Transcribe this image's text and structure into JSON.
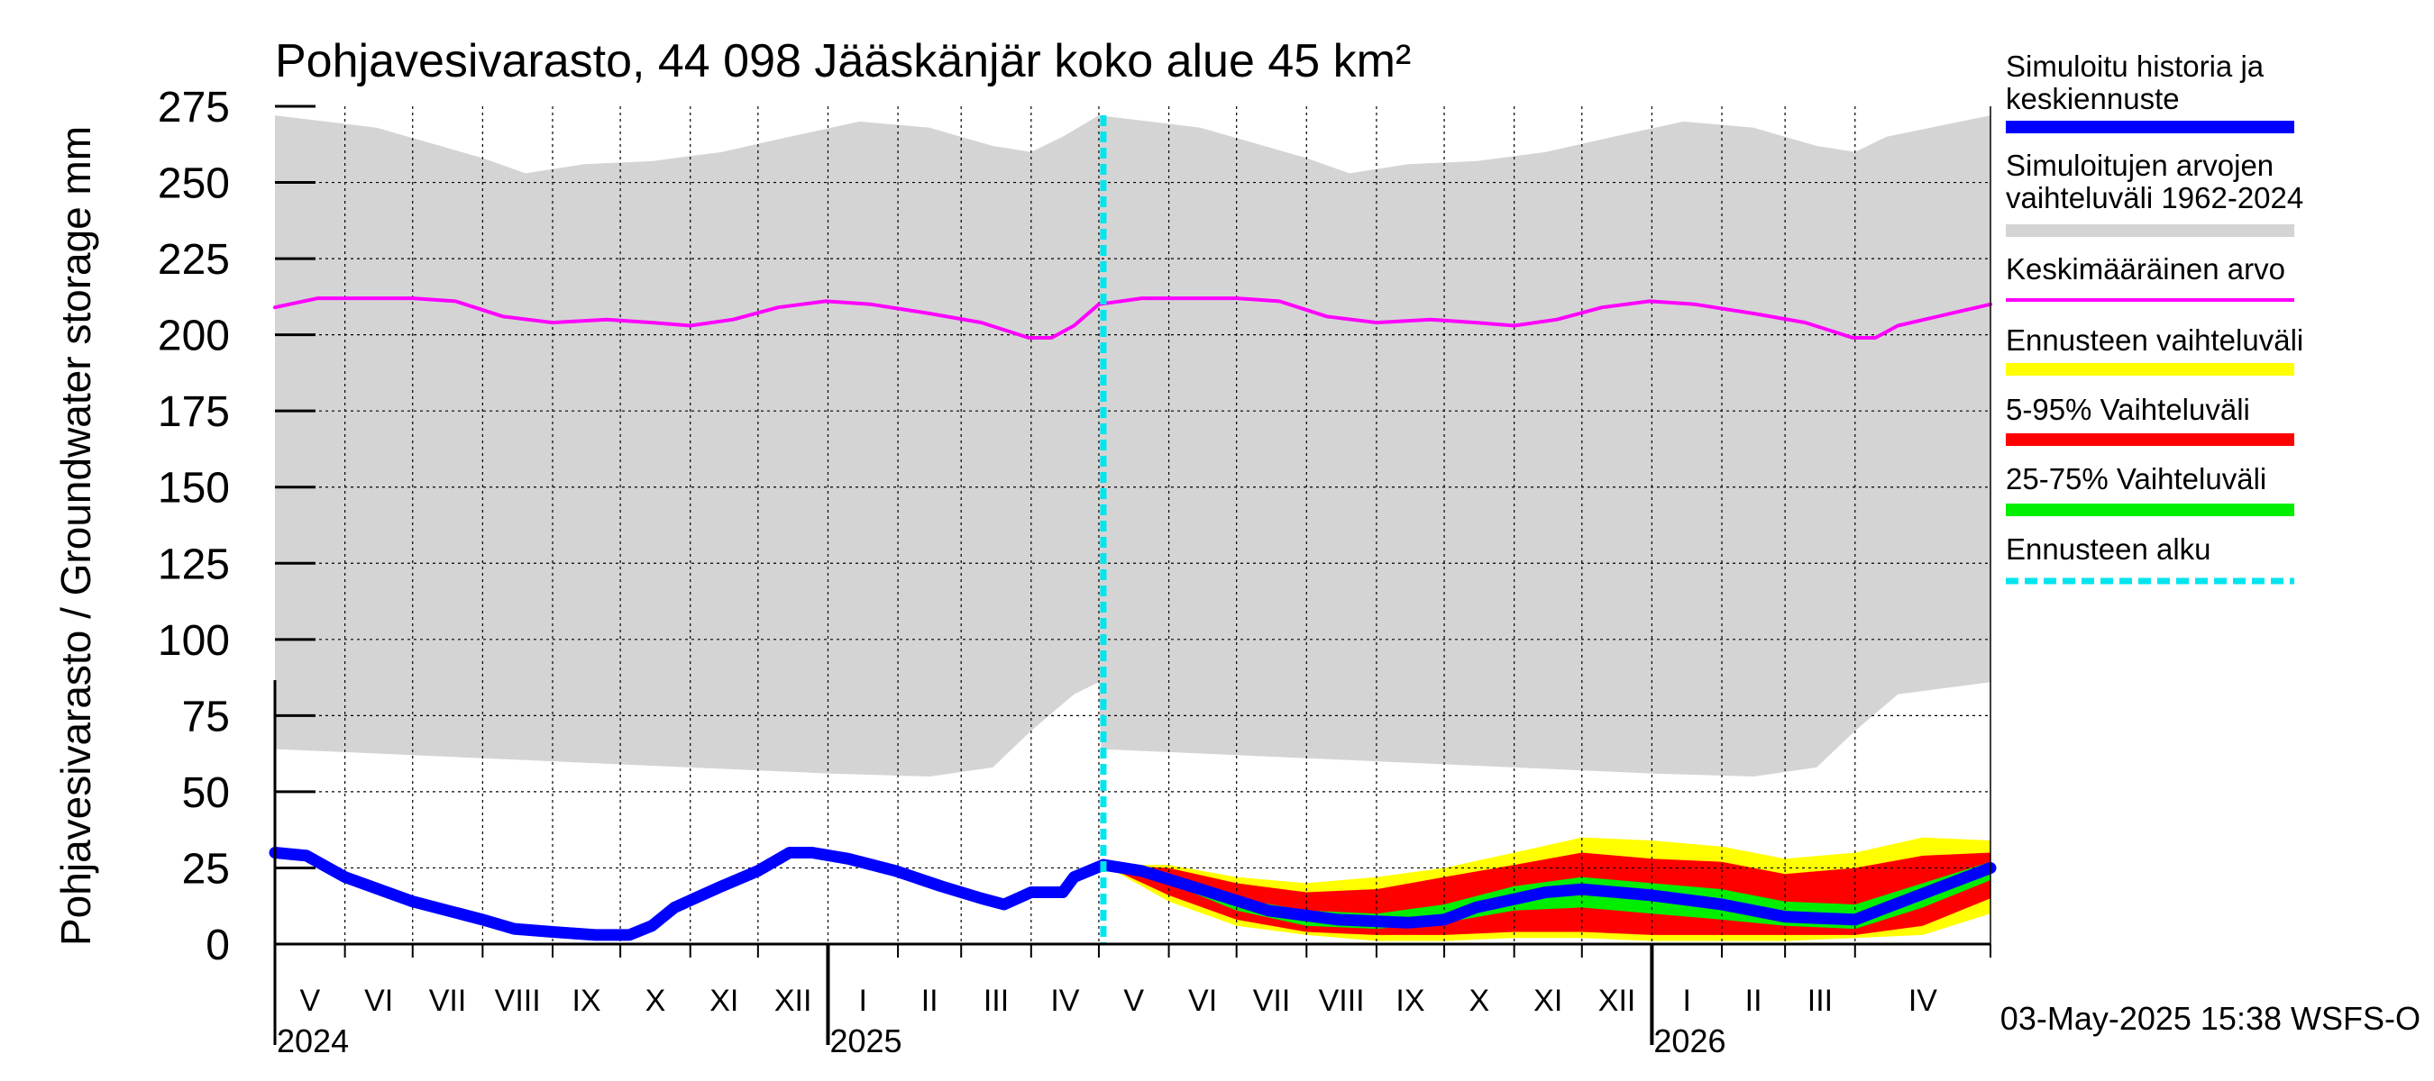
{
  "chart_data": {
    "type": "area",
    "title": "Pohjavesivarasto, 44 098 Jääskänjär koko alue 45 km²",
    "ylabel": "Pohjavesivarasto / Groundwater storage   mm",
    "ylim": [
      0,
      275
    ],
    "yticks": [
      "0",
      "25",
      "50",
      "75",
      "100",
      "125",
      "150",
      "175",
      "200",
      "225",
      "250",
      "275"
    ],
    "months": [
      "V",
      "VI",
      "VII",
      "VIII",
      "IX",
      "X",
      "XI",
      "XII",
      "I",
      "II",
      "III",
      "IV",
      "V",
      "VI",
      "VII",
      "VIII",
      "IX",
      "X",
      "XI",
      "XII",
      "I",
      "II",
      "III",
      "IV"
    ],
    "years": [
      "2024",
      "2025",
      "2026"
    ],
    "x_start": "2024-05-01",
    "x_end": "2026-05-31",
    "forecast_start": "2025-05-03",
    "footer": "03-May-2025 15:38 WSFS-O",
    "legend": [
      {
        "label": "Simuloitu historia ja keskiennuste",
        "color": "#0000ff"
      },
      {
        "label": "Simuloitujen arvojen vaihteluväli 1962-2024",
        "color": "#d3d3d3"
      },
      {
        "label": "Keskimääräinen arvo",
        "color": "#ff00ff"
      },
      {
        "label": "Ennusteen vaihteluväli",
        "color": "#ffff00"
      },
      {
        "label": "5-95% Vaihteluväli",
        "color": "#ff0000"
      },
      {
        "label": "25-75% Vaihteluväli",
        "color": "#00ee00"
      },
      {
        "label": "Ennusteen alku",
        "color": "#00e5ee"
      }
    ],
    "range_upper": [
      [
        "2024-05-01",
        272
      ],
      [
        "2024-06-15",
        268
      ],
      [
        "2024-08-01",
        258
      ],
      [
        "2024-08-20",
        253
      ],
      [
        "2024-09-15",
        256
      ],
      [
        "2024-10-15",
        257
      ],
      [
        "2024-11-15",
        260
      ],
      [
        "2024-12-15",
        265
      ],
      [
        "2025-01-15",
        270
      ],
      [
        "2025-02-15",
        268
      ],
      [
        "2025-03-15",
        262
      ],
      [
        "2025-04-01",
        260
      ],
      [
        "2025-04-15",
        265
      ],
      [
        "2025-05-01",
        272
      ],
      [
        "2025-06-15",
        268
      ],
      [
        "2025-08-01",
        258
      ],
      [
        "2025-08-20",
        253
      ],
      [
        "2025-09-15",
        256
      ],
      [
        "2025-10-15",
        257
      ],
      [
        "2025-11-15",
        260
      ],
      [
        "2025-12-15",
        265
      ],
      [
        "2026-01-15",
        270
      ],
      [
        "2026-02-15",
        268
      ],
      [
        "2026-03-15",
        262
      ],
      [
        "2026-04-01",
        260
      ],
      [
        "2026-04-15",
        265
      ],
      [
        "2026-05-31",
        272
      ]
    ],
    "range_lower": [
      [
        "2024-05-01",
        64
      ],
      [
        "2024-06-01",
        63
      ],
      [
        "2024-07-01",
        62
      ],
      [
        "2024-09-01",
        60
      ],
      [
        "2024-11-01",
        58
      ],
      [
        "2025-01-01",
        56
      ],
      [
        "2025-02-15",
        55
      ],
      [
        "2025-03-15",
        58
      ],
      [
        "2025-04-01",
        70
      ],
      [
        "2025-04-20",
        82
      ],
      [
        "2025-05-01",
        86
      ],
      [
        "2025-05-02",
        64
      ],
      [
        "2025-06-01",
        63
      ],
      [
        "2025-07-01",
        62
      ],
      [
        "2025-09-01",
        60
      ],
      [
        "2025-11-01",
        58
      ],
      [
        "2026-01-01",
        56
      ],
      [
        "2026-02-15",
        55
      ],
      [
        "2026-03-15",
        58
      ],
      [
        "2026-04-01",
        70
      ],
      [
        "2026-04-20",
        82
      ],
      [
        "2026-05-31",
        86
      ]
    ],
    "mean": [
      [
        "2024-05-01",
        209
      ],
      [
        "2024-05-20",
        212
      ],
      [
        "2024-07-01",
        212
      ],
      [
        "2024-07-20",
        211
      ],
      [
        "2024-08-10",
        206
      ],
      [
        "2024-09-01",
        204
      ],
      [
        "2024-09-25",
        205
      ],
      [
        "2024-10-15",
        204
      ],
      [
        "2024-11-01",
        203
      ],
      [
        "2024-11-20",
        205
      ],
      [
        "2024-12-10",
        209
      ],
      [
        "2024-12-31",
        211
      ],
      [
        "2025-01-20",
        210
      ],
      [
        "2025-02-15",
        207
      ],
      [
        "2025-03-10",
        204
      ],
      [
        "2025-03-31",
        199
      ],
      [
        "2025-04-10",
        199
      ],
      [
        "2025-04-20",
        203
      ],
      [
        "2025-05-01",
        210
      ],
      [
        "2025-05-20",
        212
      ],
      [
        "2025-07-01",
        212
      ],
      [
        "2025-07-20",
        211
      ],
      [
        "2025-08-10",
        206
      ],
      [
        "2025-09-01",
        204
      ],
      [
        "2025-09-25",
        205
      ],
      [
        "2025-10-15",
        204
      ],
      [
        "2025-11-01",
        203
      ],
      [
        "2025-11-20",
        205
      ],
      [
        "2025-12-10",
        209
      ],
      [
        "2025-12-31",
        211
      ],
      [
        "2026-01-20",
        210
      ],
      [
        "2026-02-15",
        207
      ],
      [
        "2026-03-10",
        204
      ],
      [
        "2026-03-31",
        199
      ],
      [
        "2026-04-10",
        199
      ],
      [
        "2026-04-20",
        203
      ],
      [
        "2026-05-31",
        210
      ]
    ],
    "history": [
      [
        "2024-05-01",
        30
      ],
      [
        "2024-05-15",
        29
      ],
      [
        "2024-06-01",
        22
      ],
      [
        "2024-07-01",
        14
      ],
      [
        "2024-08-01",
        8
      ],
      [
        "2024-08-15",
        5
      ],
      [
        "2024-09-01",
        4
      ],
      [
        "2024-09-20",
        3
      ],
      [
        "2024-10-05",
        3
      ],
      [
        "2024-10-15",
        6
      ],
      [
        "2024-10-25",
        12
      ],
      [
        "2024-11-15",
        19
      ],
      [
        "2024-12-01",
        24
      ],
      [
        "2024-12-15",
        30
      ],
      [
        "2024-12-25",
        30
      ],
      [
        "2025-01-10",
        28
      ],
      [
        "2025-01-31",
        24
      ],
      [
        "2025-02-20",
        19
      ],
      [
        "2025-03-10",
        15
      ],
      [
        "2025-03-20",
        13
      ],
      [
        "2025-04-01",
        17
      ],
      [
        "2025-04-15",
        17
      ],
      [
        "2025-04-20",
        22
      ],
      [
        "2025-05-03",
        26
      ]
    ],
    "forecast_median": [
      [
        "2025-05-03",
        26
      ],
      [
        "2025-05-20",
        24
      ],
      [
        "2025-06-15",
        18
      ],
      [
        "2025-07-15",
        11
      ],
      [
        "2025-08-15",
        8
      ],
      [
        "2025-09-15",
        7
      ],
      [
        "2025-10-01",
        8
      ],
      [
        "2025-10-15",
        12
      ],
      [
        "2025-11-15",
        17
      ],
      [
        "2025-12-01",
        18
      ],
      [
        "2026-01-01",
        16
      ],
      [
        "2026-02-01",
        13
      ],
      [
        "2026-03-01",
        9
      ],
      [
        "2026-04-01",
        8
      ],
      [
        "2026-04-15",
        12
      ],
      [
        "2026-05-31",
        25
      ]
    ],
    "yellow_upper": [
      [
        "2025-05-03",
        26
      ],
      [
        "2025-06-01",
        26
      ],
      [
        "2025-07-01",
        22
      ],
      [
        "2025-08-01",
        20
      ],
      [
        "2025-09-01",
        22
      ],
      [
        "2025-10-01",
        25
      ],
      [
        "2025-11-01",
        30
      ],
      [
        "2025-12-01",
        35
      ],
      [
        "2026-01-01",
        34
      ],
      [
        "2026-02-01",
        32
      ],
      [
        "2026-03-01",
        28
      ],
      [
        "2026-04-01",
        30
      ],
      [
        "2026-05-01",
        35
      ],
      [
        "2026-05-31",
        34
      ]
    ],
    "yellow_lower": [
      [
        "2025-05-03",
        26
      ],
      [
        "2025-06-01",
        14
      ],
      [
        "2025-07-01",
        6
      ],
      [
        "2025-08-01",
        3
      ],
      [
        "2025-09-01",
        1
      ],
      [
        "2025-10-01",
        1
      ],
      [
        "2025-11-01",
        2
      ],
      [
        "2025-12-01",
        2
      ],
      [
        "2026-01-01",
        1
      ],
      [
        "2026-02-01",
        1
      ],
      [
        "2026-03-01",
        1
      ],
      [
        "2026-04-01",
        2
      ],
      [
        "2026-05-01",
        3
      ],
      [
        "2026-05-31",
        10
      ]
    ],
    "red_upper": [
      [
        "2025-05-03",
        26
      ],
      [
        "2025-06-01",
        25
      ],
      [
        "2025-07-01",
        20
      ],
      [
        "2025-08-01",
        17
      ],
      [
        "2025-09-01",
        18
      ],
      [
        "2025-10-01",
        22
      ],
      [
        "2025-11-01",
        26
      ],
      [
        "2025-12-01",
        30
      ],
      [
        "2026-01-01",
        28
      ],
      [
        "2026-02-01",
        27
      ],
      [
        "2026-03-01",
        23
      ],
      [
        "2026-04-01",
        25
      ],
      [
        "2026-05-01",
        29
      ],
      [
        "2026-05-31",
        30
      ]
    ],
    "red_lower": [
      [
        "2025-05-03",
        26
      ],
      [
        "2025-06-01",
        16
      ],
      [
        "2025-07-01",
        8
      ],
      [
        "2025-08-01",
        4
      ],
      [
        "2025-09-01",
        3
      ],
      [
        "2025-10-01",
        3
      ],
      [
        "2025-11-01",
        4
      ],
      [
        "2025-12-01",
        4
      ],
      [
        "2026-01-01",
        3
      ],
      [
        "2026-02-01",
        3
      ],
      [
        "2026-03-01",
        3
      ],
      [
        "2026-04-01",
        3
      ],
      [
        "2026-05-01",
        6
      ],
      [
        "2026-05-31",
        15
      ]
    ],
    "green_upper": [
      [
        "2025-05-03",
        26
      ],
      [
        "2025-06-01",
        23
      ],
      [
        "2025-07-01",
        15
      ],
      [
        "2025-08-01",
        11
      ],
      [
        "2025-09-01",
        10
      ],
      [
        "2025-10-01",
        13
      ],
      [
        "2025-11-01",
        19
      ],
      [
        "2025-12-01",
        22
      ],
      [
        "2026-01-01",
        20
      ],
      [
        "2026-02-01",
        18
      ],
      [
        "2026-03-01",
        14
      ],
      [
        "2026-04-01",
        13
      ],
      [
        "2026-05-01",
        20
      ],
      [
        "2026-05-31",
        27
      ]
    ],
    "green_lower": [
      [
        "2025-05-03",
        26
      ],
      [
        "2025-06-01",
        20
      ],
      [
        "2025-07-01",
        11
      ],
      [
        "2025-08-01",
        6
      ],
      [
        "2025-09-01",
        5
      ],
      [
        "2025-10-01",
        7
      ],
      [
        "2025-11-01",
        11
      ],
      [
        "2025-12-01",
        12
      ],
      [
        "2026-01-01",
        10
      ],
      [
        "2026-02-01",
        8
      ],
      [
        "2026-03-01",
        6
      ],
      [
        "2026-04-01",
        5
      ],
      [
        "2026-05-01",
        12
      ],
      [
        "2026-05-31",
        21
      ]
    ]
  }
}
